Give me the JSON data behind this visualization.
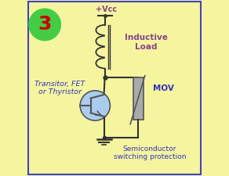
{
  "bg_color": "#f5f5a0",
  "border_color": "#4444bb",
  "title_num": "3",
  "title_circle_color": "#44cc44",
  "title_text_color": "#cc0000",
  "vcc_label": "+Vcc",
  "inductive_label": "Inductive\nLoad",
  "transistor_label": "Transitor, FET\nor Thyristor",
  "mov_label": "MOV",
  "semi_label": "Semiconductor\nswitching protection",
  "wire_color": "#333333",
  "component_color": "#555555",
  "transistor_fill": "#aaccee",
  "mov_fill": "#aaaaaa",
  "label_color_blue": "#3333bb",
  "label_color_purple": "#884488",
  "figw": 2.92,
  "figh": 2.25,
  "dpi": 100
}
